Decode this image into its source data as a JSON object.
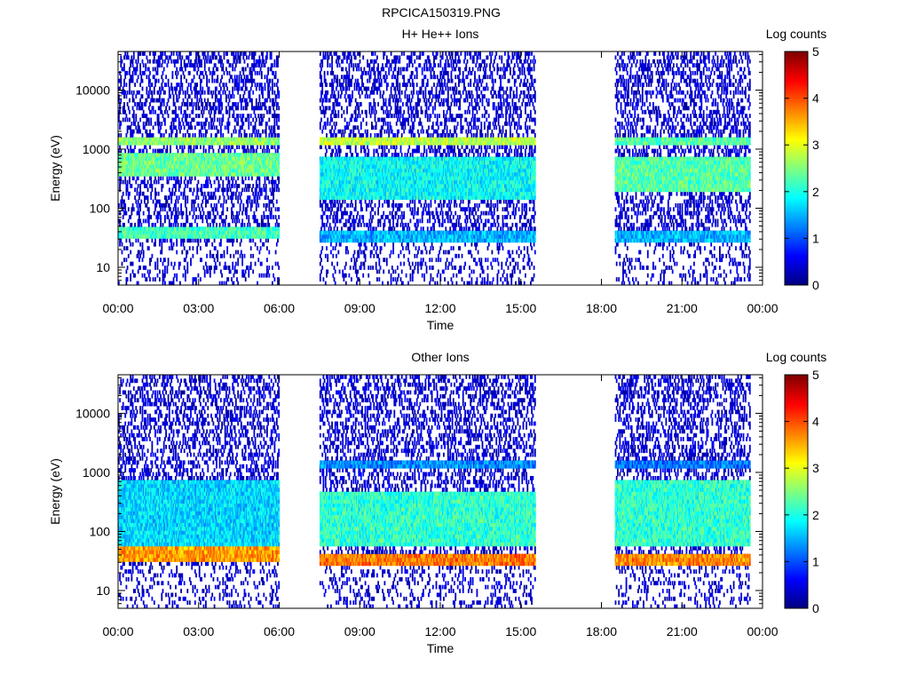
{
  "figure": {
    "title": "RPCICA150319.PNG"
  },
  "colorbar": {
    "stops": [
      "#00007f",
      "#0000ff",
      "#007fff",
      "#00ffff",
      "#7fff7f",
      "#ffff00",
      "#ff7f00",
      "#ff0000",
      "#7f0000"
    ]
  },
  "chart_data": [
    {
      "type": "heatmap",
      "title": "H+ He++ Ions",
      "xlabel": "Time",
      "ylabel": "Energy (eV)",
      "y_scale": "log",
      "xlim": [
        "00:00",
        "24:00"
      ],
      "ylim": [
        5,
        45000
      ],
      "x_ticks": [
        "00:00",
        "03:00",
        "06:00",
        "09:00",
        "12:00",
        "15:00",
        "18:00",
        "21:00",
        "00:00"
      ],
      "y_ticks": [
        "10",
        "100",
        "1000",
        "10000"
      ],
      "colorbar_label": "Log counts",
      "colorbar_range": [
        0,
        5
      ],
      "colorbar_ticks": [
        "0",
        "1",
        "2",
        "3",
        "4",
        "5"
      ],
      "data_intervals": [
        [
          "00:00",
          "06:00"
        ],
        [
          "07:30",
          "15:30"
        ],
        [
          "18:30",
          "23:30"
        ]
      ],
      "bands": [
        {
          "segment": 0,
          "energy": [
            1100,
            1600
          ],
          "log_counts": 2.6
        },
        {
          "segment": 0,
          "energy": [
            350,
            900
          ],
          "log_counts": 2.4
        },
        {
          "segment": 0,
          "energy": [
            30,
            50
          ],
          "log_counts": 2.2
        },
        {
          "segment": 1,
          "energy": [
            1100,
            1500
          ],
          "log_counts": 2.8
        },
        {
          "segment": 1,
          "energy": [
            150,
            800
          ],
          "log_counts": 1.9
        },
        {
          "segment": 1,
          "energy": [
            28,
            40
          ],
          "log_counts": 1.5
        },
        {
          "segment": 2,
          "energy": [
            1100,
            1500
          ],
          "log_counts": 2.3
        },
        {
          "segment": 2,
          "energy": [
            200,
            700
          ],
          "log_counts": 2.3
        },
        {
          "segment": 2,
          "energy": [
            28,
            40
          ],
          "log_counts": 1.5
        }
      ]
    },
    {
      "type": "heatmap",
      "title": "Other Ions",
      "xlabel": "Time",
      "ylabel": "Energy (eV)",
      "y_scale": "log",
      "xlim": [
        "00:00",
        "24:00"
      ],
      "ylim": [
        5,
        45000
      ],
      "x_ticks": [
        "00:00",
        "03:00",
        "06:00",
        "09:00",
        "12:00",
        "15:00",
        "18:00",
        "21:00",
        "00:00"
      ],
      "y_ticks": [
        "10",
        "100",
        "1000",
        "10000"
      ],
      "colorbar_label": "Log counts",
      "colorbar_range": [
        0,
        5
      ],
      "colorbar_ticks": [
        "0",
        "1",
        "2",
        "3",
        "4",
        "5"
      ],
      "data_intervals": [
        [
          "00:00",
          "06:00"
        ],
        [
          "07:30",
          "15:30"
        ],
        [
          "18:30",
          "23:30"
        ]
      ],
      "bands": [
        {
          "segment": 0,
          "energy": [
            30,
            55
          ],
          "log_counts": 3.6
        },
        {
          "segment": 0,
          "energy": [
            60,
            700
          ],
          "log_counts": 1.7
        },
        {
          "segment": 1,
          "energy": [
            28,
            45
          ],
          "log_counts": 3.8
        },
        {
          "segment": 1,
          "energy": [
            60,
            500
          ],
          "log_counts": 2.1
        },
        {
          "segment": 1,
          "energy": [
            1100,
            1500
          ],
          "log_counts": 1.3
        },
        {
          "segment": 2,
          "energy": [
            28,
            45
          ],
          "log_counts": 3.7
        },
        {
          "segment": 2,
          "energy": [
            60,
            700
          ],
          "log_counts": 2.1
        },
        {
          "segment": 2,
          "energy": [
            1100,
            1500
          ],
          "log_counts": 1.2
        }
      ]
    }
  ]
}
